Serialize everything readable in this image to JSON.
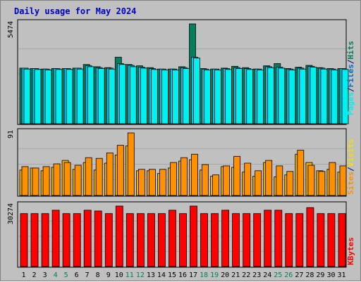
{
  "title": "Daily usage for May 2024",
  "colors": {
    "hits": "#00805c",
    "files": "#00c8f0",
    "pages": "#00f0f0",
    "visits": "#f0b000",
    "sites": "#ff9000",
    "kbytes": "#ff0000",
    "weekend": "#00805c",
    "weekday": "#000000",
    "panel_bg": "#c0c0c0"
  },
  "legend": {
    "top": {
      "pages": "Pages",
      "files": "Files",
      "hits": "Hits",
      "sep": "/"
    },
    "middle": {
      "sites": "Sites",
      "visits": "Visits",
      "sep": "/"
    },
    "bottom": {
      "kbytes": "KBytes"
    }
  },
  "axis": {
    "top_max_label": "5474",
    "middle_max_label": "91",
    "bottom_max_label": "30274"
  },
  "chart_data": {
    "type": "bar",
    "title": "Daily usage for May 2024",
    "categories": [
      "1",
      "2",
      "3",
      "4",
      "5",
      "6",
      "7",
      "8",
      "9",
      "10",
      "11",
      "12",
      "13",
      "14",
      "15",
      "16",
      "17",
      "18",
      "19",
      "20",
      "21",
      "22",
      "23",
      "24",
      "25",
      "26",
      "27",
      "28",
      "29",
      "30",
      "31"
    ],
    "weekend_days": [
      4,
      5,
      11,
      12,
      18,
      19,
      25,
      26
    ],
    "panels": [
      {
        "name": "hits-files-pages",
        "ymax": 5474,
        "series": [
          {
            "name": "Hits",
            "values": [
              3050,
              3025,
              3000,
              3025,
              3025,
              3050,
              3250,
              3125,
              3075,
              3650,
              3250,
              3175,
              3075,
              3000,
              3000,
              3125,
              5474,
              3025,
              3000,
              3050,
              3150,
              3075,
              3000,
              3175,
              3300,
              3025,
              3100,
              3200,
              3075,
              3025,
              3025
            ]
          },
          {
            "name": "Files",
            "values": [
              3050,
              3025,
              3000,
              3025,
              3025,
              3050,
              3175,
              3075,
              3050,
              3300,
              3200,
              3100,
              3025,
              3000,
              3000,
              3075,
              3650,
              3000,
              3000,
              3025,
              3075,
              3025,
              3000,
              3125,
              3100,
              3000,
              3050,
              3150,
              3050,
              3000,
              3025
            ]
          },
          {
            "name": "Pages",
            "values": [
              3000,
              2975,
              2950,
              2975,
              2975,
              3000,
              3125,
              3025,
              3000,
              3250,
              3125,
              3050,
              2975,
              2950,
              2950,
              3025,
              3600,
              2950,
              2950,
              2975,
              3025,
              2975,
              2950,
              3075,
              3050,
              2950,
              3000,
              3100,
              3000,
              2950,
              2975
            ]
          }
        ]
      },
      {
        "name": "visits-sites",
        "ymax": 91,
        "series": [
          {
            "name": "Visits",
            "values": [
              37,
              40,
              36,
              41,
              51,
              38,
              48,
              37,
              47,
              59,
              72,
              36,
              36,
              32,
              40,
              50,
              52,
              37,
              28,
              42,
              41,
              34,
              28,
              48,
              27,
              30,
              60,
              48,
              36,
              38,
              34
            ]
          },
          {
            "name": "Sites",
            "values": [
              42,
              40,
              42,
              46,
              48,
              44,
              55,
              54,
              62,
              73,
              91,
              38,
              38,
              38,
              48,
              55,
              60,
              45,
              30,
              43,
              57,
              47,
              36,
              51,
              43,
              35,
              66,
              44,
              35,
              48,
              43
            ]
          }
        ]
      },
      {
        "name": "kbytes",
        "ymax": 30274,
        "series": [
          {
            "name": "KBytes",
            "values": [
              26500,
              26500,
              26500,
              28200,
              26500,
              26500,
              28200,
              27800,
              26500,
              30274,
              26500,
              26500,
              26500,
              26500,
              28200,
              26500,
              30274,
              26500,
              26500,
              28200,
              26500,
              26500,
              26500,
              28200,
              28200,
              26500,
              26500,
              29500,
              26500,
              26500,
              26500
            ]
          }
        ]
      }
    ]
  }
}
